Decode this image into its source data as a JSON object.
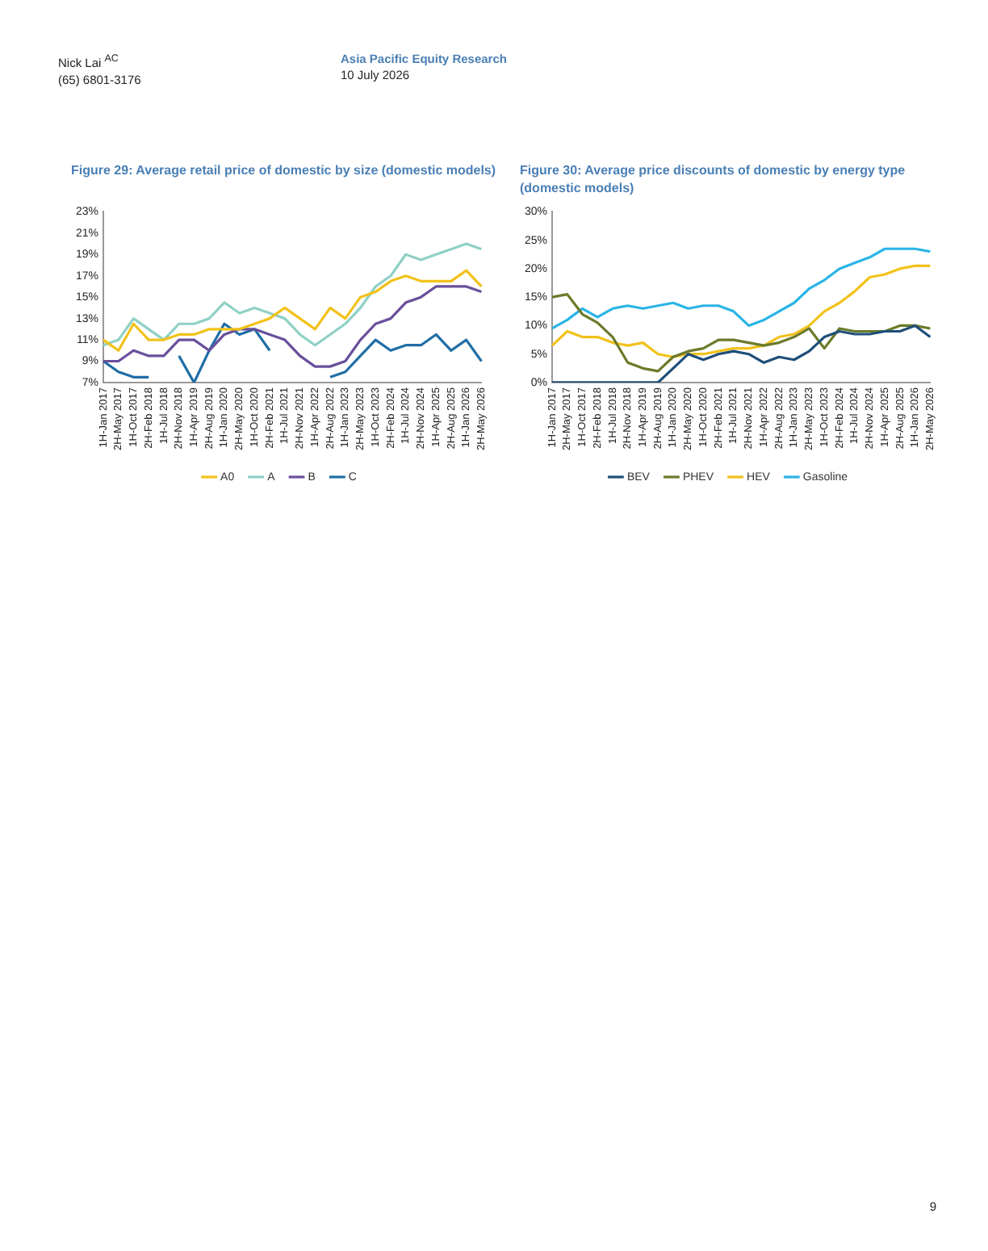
{
  "chart_data": [
    {
      "type": "line",
      "title": "Figure 29: Average retail price of domestic by size (domestic models)",
      "annotations": [
        "Nick Lai $^{AC}$",
        "(65) 6801-3176",
        "Asia Pacific Equity Research",
        "10 July 2026",
        "9"
      ],
      "categories": [
        "1H-Jan 2017",
        "2H-May 2017",
        "1H-Oct 2017",
        "2H-Feb 2018",
        "1H-Jul 2018",
        "2H-Nov 2018",
        "1H-Apr 2019",
        "2H-Aug 2019",
        "1H-Jan 2020",
        "2H-May 2020",
        "1H-Oct 2020",
        "2H-Feb 2021",
        "1H-Jul 2021",
        "2H-Nov 2021",
        "1H-Apr 2022",
        "2H-Aug 2022",
        "1H-Jan 2023",
        "2H-May 2023",
        "1H-Oct 2023",
        "2H-Feb 2024",
        "1H-Jul 2024",
        "2H-Nov 2024",
        "1H-Apr 2025",
        "2H-Aug 2025",
        "1H-Jan 2026",
        "2H-May 2026"
      ],
      "series": [
        {
          "name": "A0",
          "color": "#f2c21b",
          "values": [
            11,
            10,
            12.5,
            11,
            11,
            11.5,
            11.5,
            12,
            12,
            12,
            12.5,
            13,
            14,
            13,
            12,
            14,
            13,
            15,
            15.5,
            16.5,
            17,
            16.5,
            16.5,
            16.5,
            17.5,
            16
          ]
        },
        {
          "name": "A",
          "color": "#8fd0c6",
          "values": [
            10.5,
            11,
            13,
            12,
            11,
            12.5,
            12.5,
            13,
            14.5,
            13.5,
            14,
            13.5,
            13,
            11.5,
            10.5,
            11.5,
            12.5,
            14,
            16,
            17,
            19,
            18.5,
            19,
            19.5,
            20,
            19.5
          ]
        },
        {
          "name": "B",
          "color": "#6a4f9c",
          "values": [
            9,
            9,
            10,
            9.5,
            9.5,
            11,
            11,
            10,
            11.5,
            12,
            12,
            11.5,
            11,
            9.5,
            8.5,
            8.5,
            9,
            11,
            12.5,
            13,
            14.5,
            15,
            16,
            16,
            16,
            15.5
          ]
        },
        {
          "name": "C",
          "color": "#1f6ea6",
          "values": [
            9,
            8,
            7.5,
            7.5,
            null,
            9.5,
            7,
            10,
            12.5,
            11.5,
            12,
            10,
            null,
            null,
            null,
            7.5,
            8,
            9.5,
            11,
            10,
            10.5,
            10.5,
            11.5,
            10,
            11,
            9
          ]
        }
      ],
      "ylim": [
        7,
        23
      ],
      "yticks": [
        {
          "value": 7,
          "label": "7%"
        },
        {
          "value": 9,
          "label": "9%"
        },
        {
          "value": 11,
          "label": "11%"
        },
        {
          "value": 13,
          "label": "13%"
        },
        {
          "value": 15,
          "label": "15%"
        },
        {
          "value": 17,
          "label": "17%"
        },
        {
          "value": 19,
          "label": "19%"
        },
        {
          "value": 21,
          "label": "21%"
        },
        {
          "value": 23,
          "label": "23%"
        }
      ],
      "grid": false,
      "legend": "bottom",
      "marker": "none",
      "line_style": "solid"
    },
    {
      "type": "line",
      "title": "Figure 30: Average price discounts of domestic by energy type (domestic models)",
      "categories": [
        "1H-Jan 2017",
        "2H-May 2017",
        "1H-Oct 2017",
        "2H-Feb 2018",
        "1H-Jul 2018",
        "2H-Nov 2018",
        "1H-Apr 2019",
        "2H-Aug 2019",
        "1H-Jan 2020",
        "2H-May 2020",
        "1H-Oct 2020",
        "2H-Feb 2021",
        "1H-Jul 2021",
        "2H-Nov 2021",
        "1H-Apr 2022",
        "2H-Aug 2022",
        "1H-Jan 2023",
        "2H-May 2023",
        "1H-Oct 2023",
        "2H-Feb 2024",
        "1H-Jul 2024",
        "2H-Nov 2024",
        "1H-Apr 2025",
        "2H-Aug 2025",
        "1H-Jan 2026",
        "2H-May 2026"
      ],
      "series": [
        {
          "name": "BEV",
          "color": "#1f4e79",
          "values": [
            0,
            0,
            0,
            0,
            0,
            0,
            0,
            0,
            2.5,
            5,
            4,
            5,
            5.5,
            5,
            3.5,
            4.5,
            4,
            5.5,
            8,
            9,
            8.5,
            8.5,
            9,
            9,
            10,
            8
          ]
        },
        {
          "name": "PHEV",
          "color": "#6b7a2a",
          "values": [
            15,
            15.5,
            12,
            10.5,
            8,
            3.5,
            2.5,
            2,
            4.5,
            5.5,
            6,
            7.5,
            7.5,
            7,
            6.5,
            7,
            8,
            9.5,
            6,
            9.5,
            9,
            9,
            9,
            10,
            10,
            9.5
          ]
        },
        {
          "name": "HEV",
          "color": "#f2c21b",
          "values": [
            6.5,
            9,
            8,
            8,
            7,
            6.5,
            7,
            5,
            4.5,
            5,
            5,
            5.5,
            6,
            6,
            6.5,
            8,
            8.5,
            10,
            12.5,
            14,
            16,
            18.5,
            19,
            20,
            20.5,
            20.5
          ]
        },
        {
          "name": "Gasoline",
          "color": "#2ab4e6",
          "values": [
            9.5,
            11,
            13,
            11.5,
            13,
            13.5,
            13,
            13.5,
            14,
            13,
            13.5,
            13.5,
            12.5,
            10,
            11,
            12.5,
            14,
            16.5,
            18,
            20,
            21,
            22,
            23.5,
            23.5,
            23.5,
            23
          ]
        }
      ],
      "ylim": [
        0,
        30
      ],
      "yticks": [
        {
          "value": 0,
          "label": "0%"
        },
        {
          "value": 5,
          "label": "5%"
        },
        {
          "value": 10,
          "label": "10%"
        },
        {
          "value": 15,
          "label": "15%"
        },
        {
          "value": 20,
          "label": "20%"
        },
        {
          "value": 25,
          "label": "25%"
        },
        {
          "value": 30,
          "label": "30%"
        }
      ],
      "grid": false,
      "legend": "bottom",
      "marker": "none",
      "line_style": "solid"
    }
  ]
}
